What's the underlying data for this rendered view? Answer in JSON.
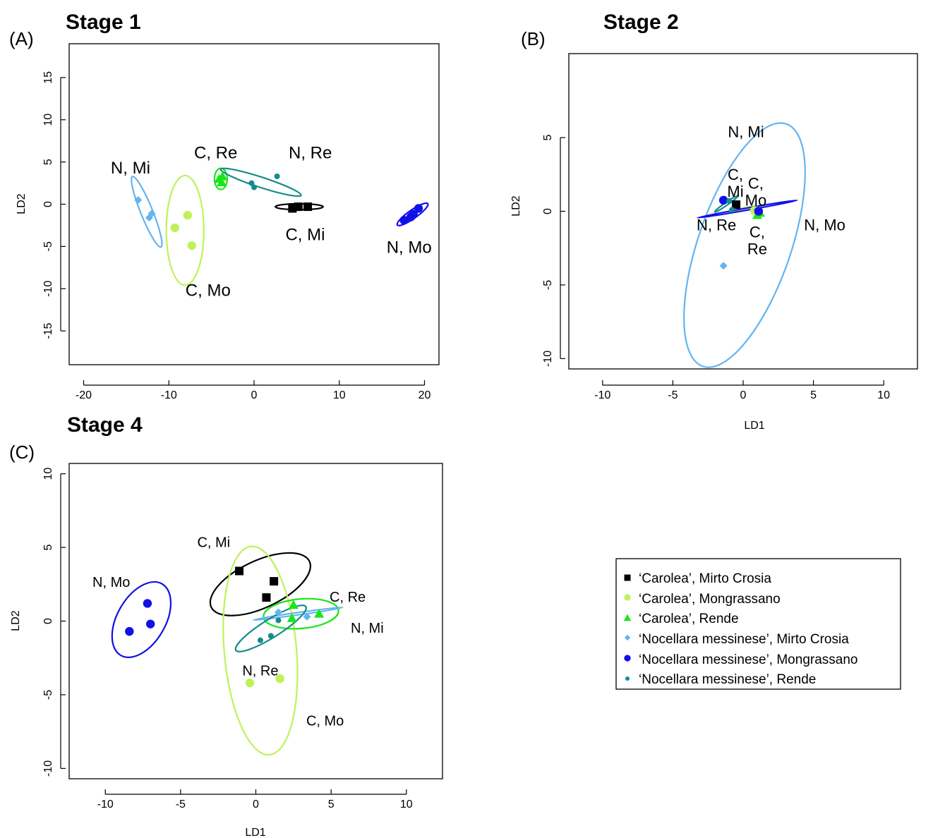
{
  "colors": {
    "C_Mi": "#000000",
    "C_Mo": "#bff25a",
    "C_Re": "#19e619",
    "N_Mi": "#64b4f0",
    "N_Mo": "#1010e8",
    "N_Re": "#148c8c"
  },
  "legend": [
    {
      "key": "C_Mi",
      "marker": "square",
      "label": "‘Carolea’, Mirto Crosia"
    },
    {
      "key": "C_Mo",
      "marker": "circle",
      "label": "‘Carolea’, Mongrassano"
    },
    {
      "key": "C_Re",
      "marker": "triangle",
      "label": "‘Carolea’, Rende"
    },
    {
      "key": "N_Mi",
      "marker": "diamond",
      "label": "‘Nocellara messinese’, Mirto Crosia"
    },
    {
      "key": "N_Mo",
      "marker": "circle",
      "label": "‘Nocellara messinese’, Mongrassano"
    },
    {
      "key": "N_Re",
      "marker": "smallcircle",
      "label": "‘Nocellara messinese’, Rende"
    }
  ],
  "chart_data": [
    {
      "type": "scatter",
      "panel": "(A)",
      "title": "Stage 1",
      "xlabel": "",
      "ylabel": "LD2",
      "xlim": [
        -21.7,
        21.7
      ],
      "ylim": [
        -19,
        19
      ],
      "xticks": [
        -20,
        -10,
        0,
        10,
        20
      ],
      "yticks": [
        -15,
        -10,
        -5,
        0,
        5,
        10,
        15
      ],
      "series": [
        {
          "key": "C_Mi",
          "points": [
            [
              4.5,
              -0.5
            ],
            [
              5.2,
              -0.3
            ],
            [
              6.3,
              -0.3
            ]
          ],
          "ellipse": {
            "cx": 5.3,
            "cy": -0.3,
            "rx": 2.8,
            "ry": 0.35,
            "angle": 0
          },
          "label": "C, Mi",
          "label_pos": [
            6,
            -3.6
          ]
        },
        {
          "key": "C_Mo",
          "points": [
            [
              -9.3,
              -2.8
            ],
            [
              -7.8,
              -1.3
            ],
            [
              -7.3,
              -4.9
            ]
          ],
          "ellipse": {
            "cx": -8.1,
            "cy": -3.1,
            "rx": 2.2,
            "ry": 6.5,
            "angle": 0
          },
          "label": "C, Mo",
          "label_pos": [
            -5.4,
            -10.2
          ]
        },
        {
          "key": "C_Re",
          "points": [
            [
              -4.1,
              3.0
            ],
            [
              -3.7,
              3.3
            ],
            [
              -3.8,
              2.6
            ]
          ],
          "ellipse": {
            "cx": -3.9,
            "cy": 3.0,
            "rx": 0.75,
            "ry": 1.25,
            "angle": 0
          },
          "label": "C, Re",
          "label_pos": [
            -4.5,
            6.1
          ]
        },
        {
          "key": "N_Mi",
          "points": [
            [
              -13.6,
              0.5
            ],
            [
              -12.3,
              -1.6
            ],
            [
              -12.0,
              -1.1
            ]
          ],
          "ellipse": {
            "cx": -12.6,
            "cy": -0.9,
            "rx": 0.7,
            "ry": 4.5,
            "angle": -22
          },
          "label": "N, Mi",
          "label_pos": [
            -14.5,
            4.3
          ]
        },
        {
          "key": "N_Mo",
          "points": [
            [
              17.6,
              -1.9
            ],
            [
              18.4,
              -1.5
            ],
            [
              19.3,
              -0.5
            ],
            [
              18.7,
              -1.2
            ]
          ],
          "ellipse": {
            "cx": 18.6,
            "cy": -1.2,
            "rx": 0.5,
            "ry": 2.2,
            "angle": 55
          },
          "label": "N, Mo",
          "label_pos": [
            18.2,
            -5.1
          ]
        },
        {
          "key": "N_Re",
          "points": [
            [
              -0.3,
              2.5
            ],
            [
              0.0,
              2.0
            ],
            [
              2.7,
              3.3
            ]
          ],
          "ellipse": {
            "cx": 0.8,
            "cy": 2.6,
            "rx": 0.6,
            "ry": 5.0,
            "angle": -72
          },
          "label": "N, Re",
          "label_pos": [
            6.6,
            6.1
          ]
        }
      ]
    },
    {
      "type": "scatter",
      "panel": "(B)",
      "title": "Stage 2",
      "xlabel": "LD1",
      "ylabel": "LD2",
      "xlim": [
        -12.4,
        12.4
      ],
      "ylim": [
        -10.7,
        10.7
      ],
      "xticks": [
        -10,
        -5,
        0,
        5,
        10
      ],
      "yticks": [
        -10,
        -5,
        0,
        5
      ],
      "series": [
        {
          "key": "C_Mi",
          "points": [
            [
              -0.5,
              0.45
            ]
          ],
          "ellipse": null,
          "label": "C, Mi",
          "label_pos": [
            -0.55,
            1.6
          ]
        },
        {
          "key": "C_Mo",
          "points": [
            [
              0.8,
              0.05
            ]
          ],
          "ellipse": {
            "cx": 0.4,
            "cy": 0.2,
            "rx": 1.0,
            "ry": 0.1,
            "angle": -10
          },
          "label": "C, Mo",
          "label_pos": [
            0.9,
            1.0
          ]
        },
        {
          "key": "C_Re",
          "points": [
            [
              1.0,
              -0.25
            ],
            [
              1.2,
              -0.1
            ]
          ],
          "ellipse": null,
          "label": "C, Re",
          "label_pos": [
            1.0,
            -2.3
          ]
        },
        {
          "key": "N_Mi",
          "points": [
            [
              -1.4,
              -3.7
            ],
            [
              -1.3,
              0.8
            ],
            [
              1.0,
              0.1
            ]
          ],
          "ellipse": {
            "cx": 0.1,
            "cy": -2.3,
            "rx": 3.3,
            "ry": 8.7,
            "angle": 19
          },
          "label": "N, Mi",
          "label_pos": [
            0.2,
            5.4
          ]
        },
        {
          "key": "N_Mo",
          "points": [
            [
              -1.4,
              0.75
            ],
            [
              1.1,
              0.0
            ]
          ],
          "ellipse": {
            "cx": 0.3,
            "cy": 0.15,
            "rx": 3.6,
            "ry": 0.07,
            "angle": -10
          },
          "label": "N, Mo",
          "label_pos": [
            5.8,
            -0.9
          ]
        },
        {
          "key": "N_Re",
          "points": [
            [
              -0.8,
              0.1
            ],
            [
              -1.0,
              0.7
            ]
          ],
          "ellipse": {
            "cx": -1.2,
            "cy": 0.5,
            "rx": 1.0,
            "ry": 0.1,
            "angle": -35
          },
          "label": "N, Re",
          "label_pos": [
            -1.9,
            -0.9
          ]
        }
      ]
    },
    {
      "type": "scatter",
      "panel": "(C)",
      "title": "Stage 4",
      "xlabel": "LD1",
      "ylabel": "LD2",
      "xlim": [
        -12.4,
        12.4
      ],
      "ylim": [
        -10.7,
        10.7
      ],
      "xticks": [
        -10,
        -5,
        0,
        5,
        10
      ],
      "yticks": [
        -10,
        -5,
        0,
        5,
        10
      ],
      "series": [
        {
          "key": "C_Mi",
          "points": [
            [
              -1.1,
              3.4
            ],
            [
              1.2,
              2.7
            ],
            [
              0.7,
              1.6
            ]
          ],
          "ellipse": {
            "cx": 0.3,
            "cy": 2.5,
            "rx": 3.6,
            "ry": 1.6,
            "angle": -25
          },
          "label": "C, Mi",
          "label_pos": [
            -2.8,
            5.4
          ]
        },
        {
          "key": "C_Mo",
          "points": [
            [
              -0.4,
              -4.2
            ],
            [
              1.6,
              -3.9
            ]
          ],
          "ellipse": {
            "cx": 0.3,
            "cy": -2.0,
            "rx": 2.4,
            "ry": 7.1,
            "angle": -5
          },
          "label": "C, Mo",
          "label_pos": [
            4.6,
            -6.7
          ]
        },
        {
          "key": "C_Re",
          "points": [
            [
              2.5,
              1.1
            ],
            [
              4.2,
              0.5
            ],
            [
              2.4,
              0.2
            ]
          ],
          "ellipse": {
            "cx": 3.0,
            "cy": 0.5,
            "rx": 2.5,
            "ry": 1.0,
            "angle": -5
          },
          "label": "C, Re",
          "label_pos": [
            6.1,
            1.7
          ]
        },
        {
          "key": "N_Mi",
          "points": [
            [
              3.4,
              0.3
            ],
            [
              1.5,
              0.6
            ]
          ],
          "ellipse": {
            "cx": 2.8,
            "cy": 0.5,
            "rx": 3.0,
            "ry": 0.08,
            "angle": -8
          },
          "label": "N, Mi",
          "label_pos": [
            7.4,
            -0.4
          ]
        },
        {
          "key": "N_Mo",
          "points": [
            [
              -7.2,
              1.2
            ],
            [
              -7.0,
              -0.2
            ],
            [
              -8.4,
              -0.7
            ]
          ],
          "ellipse": {
            "cx": -7.6,
            "cy": 0.1,
            "rx": 1.6,
            "ry": 2.8,
            "angle": 30
          },
          "label": "N, Mo",
          "label_pos": [
            -9.6,
            2.7
          ]
        },
        {
          "key": "N_Re",
          "points": [
            [
              0.3,
              -1.3
            ],
            [
              1.0,
              -1.0
            ],
            [
              1.5,
              0.05
            ]
          ],
          "ellipse": {
            "cx": 1.0,
            "cy": -0.5,
            "rx": 0.6,
            "ry": 2.8,
            "angle": 58
          },
          "label": "N, Re",
          "label_pos": [
            0.3,
            -3.3
          ]
        }
      ]
    }
  ]
}
